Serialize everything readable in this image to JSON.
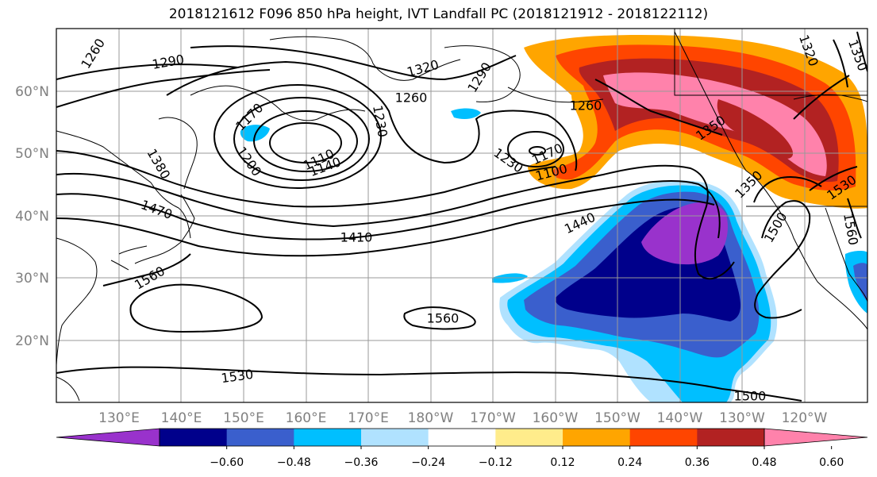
{
  "title": "2018121612 F096 850 hPa height, IVT Landfall PC (2018121912 - 2018122112)",
  "lat_labels": [
    "20°N",
    "30°N",
    "40°N",
    "50°N",
    "60°N"
  ],
  "lon_labels": [
    "130°E",
    "140°E",
    "150°E",
    "160°E",
    "170°E",
    "180°W",
    "170°W",
    "160°W",
    "150°W",
    "140°W",
    "130°W",
    "120°W"
  ],
  "contour_labels": [
    "1260",
    "1290",
    "1320",
    "1290",
    "1260",
    "1230",
    "1170",
    "1200",
    "1110",
    "1140",
    "1380",
    "1470",
    "1410",
    "1560",
    "1260",
    "1230",
    "1170",
    "1100",
    "1350",
    "1350",
    "1440",
    "1500",
    "1530",
    "1560",
    "1560",
    "1530",
    "1500",
    "1320",
    "1350"
  ],
  "colorbar": {
    "tick_labels": [
      "−0.60",
      "−0.48",
      "−0.36",
      "−0.24",
      "−0.12",
      "0.12",
      "0.24",
      "0.36",
      "0.48",
      "0.60"
    ],
    "colors": [
      "#9932cc",
      "#00008b",
      "#3a5fcd",
      "#00bfff",
      "#b0e2ff",
      "#ffffff",
      "#ffec8b",
      "#ffa500",
      "#ff4500",
      "#b22222",
      "#ff82ab"
    ]
  }
}
